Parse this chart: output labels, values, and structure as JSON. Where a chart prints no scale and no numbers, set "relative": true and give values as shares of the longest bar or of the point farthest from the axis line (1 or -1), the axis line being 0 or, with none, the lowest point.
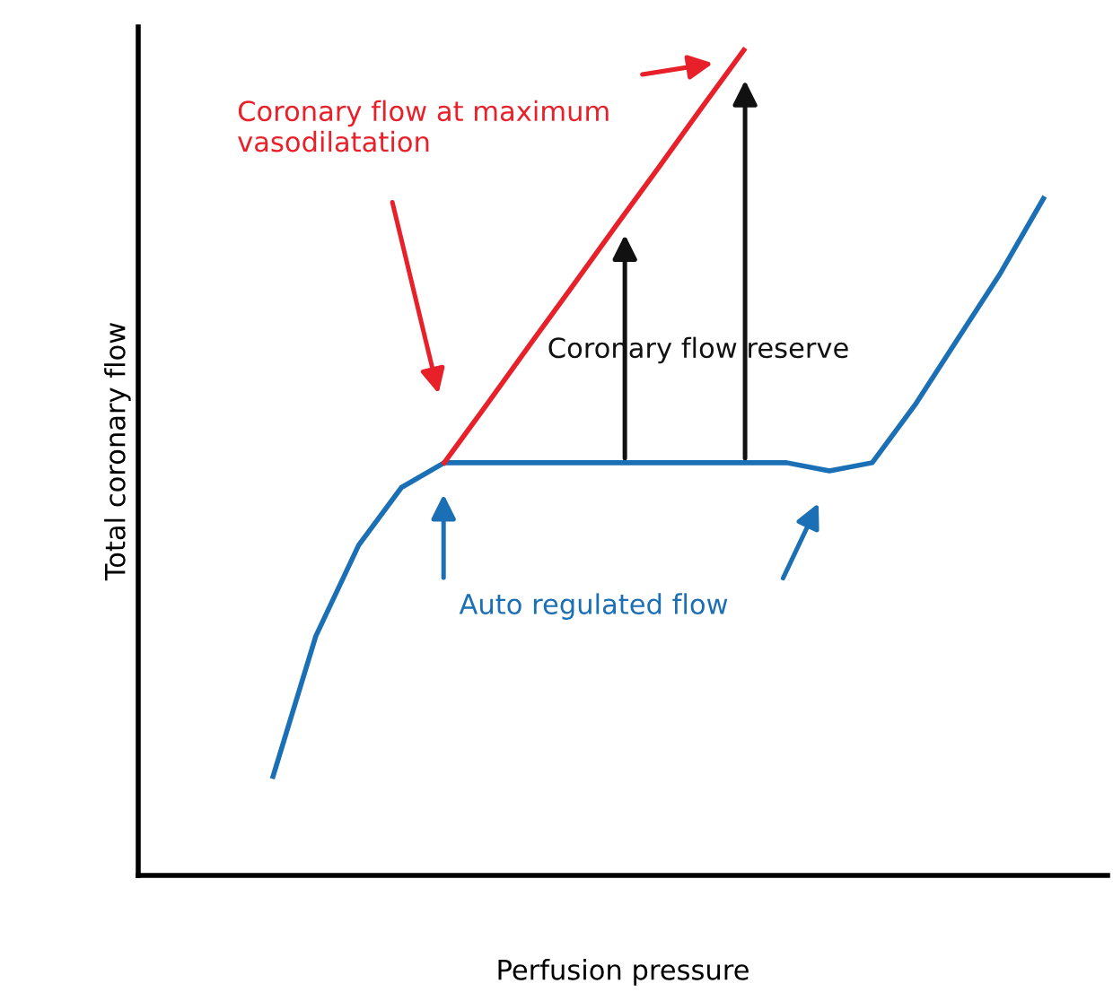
{
  "chart_data": {
    "type": "line",
    "relative": true,
    "xlabel": "Perfusion pressure",
    "ylabel": "Total coronary flow",
    "categories": [
      null,
      null,
      null,
      null,
      null,
      null,
      null,
      null,
      null,
      null,
      null,
      null,
      null,
      null,
      null,
      null,
      null,
      null,
      null
    ],
    "series": [
      {
        "color": "#1a6fb5",
        "values": [
          0.12,
          0.29,
          0.4,
          0.47,
          0.5,
          0.5,
          0.5,
          0.5,
          0.5,
          0.5,
          0.5,
          0.5,
          0.5,
          0.49,
          0.5,
          0.57,
          0.65,
          0.73,
          0.82
        ]
      },
      {
        "color": "#e8202a",
        "values": [
          null,
          null,
          null,
          null,
          0.5,
          0.571,
          0.643,
          0.714,
          0.786,
          0.857,
          0.929,
          1.0,
          null,
          null,
          null,
          null,
          null,
          null,
          null
        ]
      }
    ],
    "annotations": [
      "Coronary flow at maximum\nvasodilatation",
      "Coronary flow reserve",
      "Auto regulated flow"
    ],
    "grid": false,
    "marker": "none",
    "line_style": "solid"
  }
}
